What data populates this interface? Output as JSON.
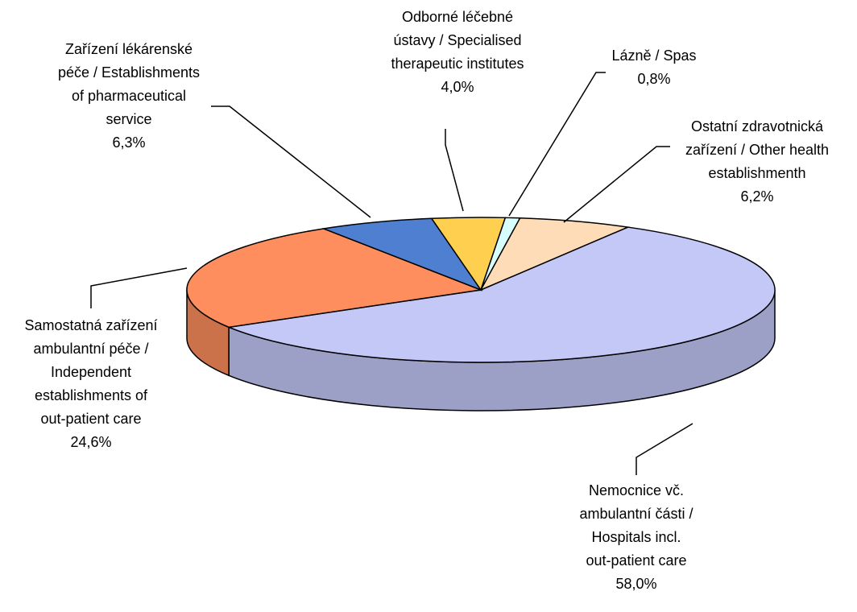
{
  "chart_data": {
    "type": "pie3d",
    "categories": [
      [
        "Nemocnice vč.",
        "ambulantní části /",
        "Hospitals incl.",
        "out-patient care"
      ],
      [
        "Samostatná zařízení",
        "ambulantní péče /",
        "Independent",
        "establishments of",
        "out-patient care"
      ],
      [
        "Zařízení lékárenské",
        "péče / Establishments",
        "of pharmaceutical",
        "service"
      ],
      [
        "Odborné léčebné",
        "ústavy / Specialised",
        "therapeutic institutes"
      ],
      [
        "Lázně / Spas"
      ],
      [
        "Ostatní zdravotnická",
        "zařízení / Other health",
        "establishmenth"
      ]
    ],
    "values": [
      58.0,
      24.6,
      6.3,
      4.0,
      0.8,
      6.2
    ],
    "value_labels": [
      "58,0%",
      "24,6%",
      "6,3%",
      "4,0%",
      "0,8%",
      "6,2%"
    ],
    "colors": [
      "#c4c8f7",
      "#ff8e5e",
      "#4f7fd0",
      "#ffd050",
      "#d8ffff",
      "#ffdcb8"
    ]
  }
}
